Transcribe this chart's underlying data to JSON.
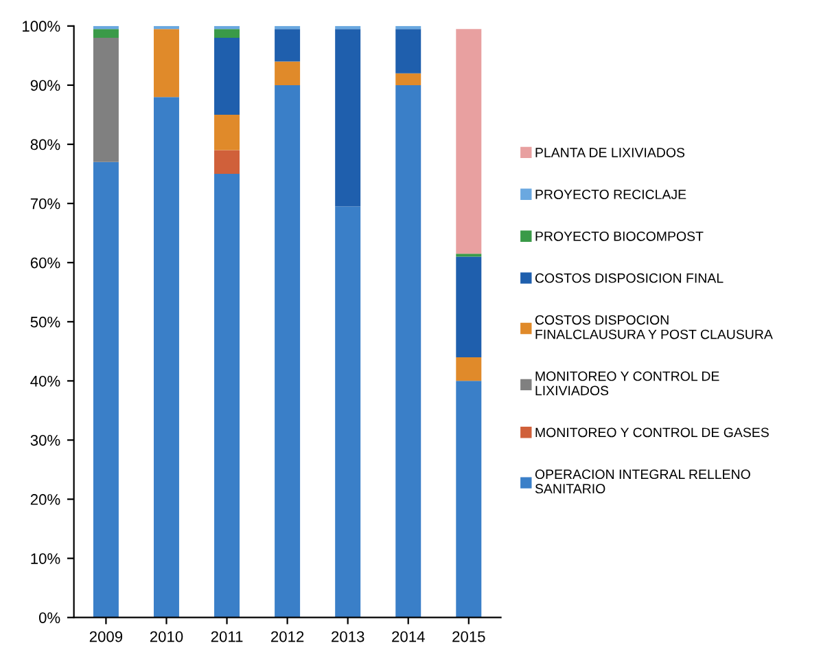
{
  "chart_data": {
    "type": "bar",
    "stacked": true,
    "categories": [
      "2009",
      "2010",
      "2011",
      "2012",
      "2013",
      "2014",
      "2015"
    ],
    "series": [
      {
        "name": "OPERACION INTEGRAL RELLENO\nSANITARIO",
        "color": "#3a7fc8",
        "values": [
          77,
          88,
          75,
          90,
          69.5,
          90,
          40
        ]
      },
      {
        "name": "MONITOREO Y CONTROL DE GASES",
        "color": "#d0603a",
        "values": [
          0,
          0,
          4,
          0,
          0,
          0,
          0
        ]
      },
      {
        "name": "MONITOREO Y CONTROL DE\nLIXIVIADOS",
        "color": "#808080",
        "values": [
          21,
          0,
          0,
          0,
          0,
          0,
          0
        ]
      },
      {
        "name": "COSTOS DISPOCION\nFINALCLAUSURA Y POST CLAUSURA",
        "color": "#e08a2a",
        "values": [
          0,
          11.5,
          6,
          4,
          0,
          2,
          4
        ]
      },
      {
        "name": "COSTOS DISPOSICION FINAL",
        "color": "#1f5fad",
        "values": [
          0,
          0,
          13,
          5.5,
          30,
          7.5,
          17
        ]
      },
      {
        "name": "PROYECTO BIOCOMPOST",
        "color": "#3a9a48",
        "values": [
          1.5,
          0,
          1.5,
          0,
          0,
          0,
          0.5
        ]
      },
      {
        "name": "PROYECTO RECICLAJE",
        "color": "#6aa8e0",
        "values": [
          0.5,
          0.5,
          0.5,
          0.5,
          0.5,
          0.5,
          0
        ]
      },
      {
        "name": "PLANTA DE LIXIVIADOS",
        "color": "#e8a0a0",
        "values": [
          0,
          0,
          0,
          0,
          0,
          0,
          38
        ]
      }
    ],
    "ylim": [
      0,
      100
    ],
    "yticks": [
      {
        "value": 0,
        "label": "0%"
      },
      {
        "value": 10,
        "label": "10%"
      },
      {
        "value": 20,
        "label": "20%"
      },
      {
        "value": 30,
        "label": "30%"
      },
      {
        "value": 40,
        "label": "40%"
      },
      {
        "value": 50,
        "label": "50%"
      },
      {
        "value": 60,
        "label": "60%"
      },
      {
        "value": 70,
        "label": "70%"
      },
      {
        "value": 80,
        "label": "80%"
      },
      {
        "value": 90,
        "label": "90%"
      },
      {
        "value": 100,
        "label": "100%"
      }
    ],
    "grid": false,
    "legend": "right"
  }
}
